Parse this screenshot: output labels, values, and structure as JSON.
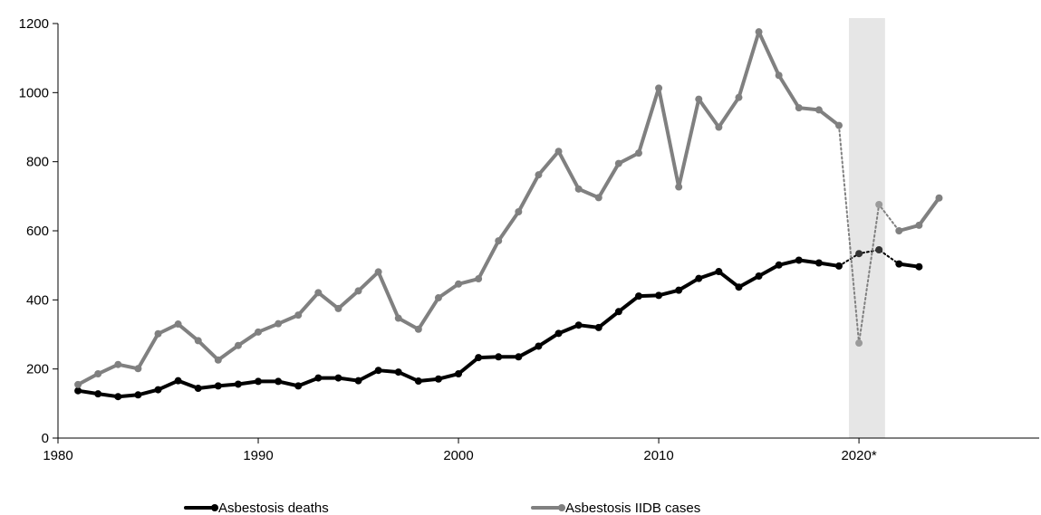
{
  "chart_data": {
    "type": "line",
    "title": "",
    "xlabel": "",
    "ylabel": "",
    "xlim": [
      1980,
      2029
    ],
    "ylim": [
      0,
      1200
    ],
    "x_ticks": [
      {
        "value": 1980,
        "label": "1980"
      },
      {
        "value": 1990,
        "label": "1990"
      },
      {
        "value": 2000,
        "label": "2000"
      },
      {
        "value": 2010,
        "label": "2010"
      },
      {
        "value": 2020,
        "label": "2020*"
      }
    ],
    "y_ticks": [
      {
        "value": 0,
        "label": "0"
      },
      {
        "value": 200,
        "label": "200"
      },
      {
        "value": 400,
        "label": "400"
      },
      {
        "value": 600,
        "label": "600"
      },
      {
        "value": 800,
        "label": "800"
      },
      {
        "value": 1000,
        "label": "1000"
      },
      {
        "value": 1200,
        "label": "1200"
      }
    ],
    "grid": false,
    "legend_position": "bottom",
    "shaded_region": {
      "x_start": 2019.5,
      "x_end": 2021.3,
      "color": "#e6e6e6"
    },
    "series": [
      {
        "name": "Asbestosis deaths",
        "color": "#000000",
        "points": [
          [
            1981,
            137
          ],
          [
            1982,
            128
          ],
          [
            1983,
            120
          ],
          [
            1984,
            125
          ],
          [
            1985,
            140
          ],
          [
            1986,
            166
          ],
          [
            1987,
            144
          ],
          [
            1988,
            151
          ],
          [
            1989,
            156
          ],
          [
            1990,
            164
          ],
          [
            1991,
            164
          ],
          [
            1992,
            151
          ],
          [
            1993,
            174
          ],
          [
            1994,
            174
          ],
          [
            1995,
            166
          ],
          [
            1996,
            196
          ],
          [
            1997,
            191
          ],
          [
            1998,
            165
          ],
          [
            1999,
            171
          ],
          [
            2000,
            186
          ],
          [
            2001,
            233
          ],
          [
            2002,
            235
          ],
          [
            2003,
            235
          ],
          [
            2004,
            266
          ],
          [
            2005,
            303
          ],
          [
            2006,
            327
          ],
          [
            2007,
            320
          ],
          [
            2008,
            366
          ],
          [
            2009,
            411
          ],
          [
            2010,
            413
          ],
          [
            2011,
            428
          ],
          [
            2012,
            462
          ],
          [
            2013,
            482
          ],
          [
            2014,
            437
          ],
          [
            2015,
            469
          ],
          [
            2016,
            501
          ],
          [
            2017,
            515
          ],
          [
            2018,
            507
          ],
          [
            2019,
            498
          ],
          [
            2020,
            534
          ],
          [
            2021,
            545
          ],
          [
            2022,
            504
          ],
          [
            2023,
            496
          ]
        ],
        "dotted_points": [
          [
            2019,
            498
          ],
          [
            2020,
            534
          ],
          [
            2021,
            545
          ],
          [
            2022,
            504
          ]
        ]
      },
      {
        "name": "Asbestosis IIDB cases",
        "color": "#808080",
        "points": [
          [
            1981,
            155
          ],
          [
            1982,
            186
          ],
          [
            1983,
            213
          ],
          [
            1984,
            201
          ],
          [
            1985,
            302
          ],
          [
            1986,
            330
          ],
          [
            1987,
            282
          ],
          [
            1988,
            226
          ],
          [
            1989,
            268
          ],
          [
            1990,
            307
          ],
          [
            1991,
            331
          ],
          [
            1992,
            356
          ],
          [
            1993,
            421
          ],
          [
            1994,
            375
          ],
          [
            1995,
            426
          ],
          [
            1996,
            481
          ],
          [
            1997,
            347
          ],
          [
            1998,
            315
          ],
          [
            1999,
            406
          ],
          [
            2000,
            446
          ],
          [
            2001,
            461
          ],
          [
            2002,
            571
          ],
          [
            2003,
            655
          ],
          [
            2004,
            762
          ],
          [
            2005,
            830
          ],
          [
            2006,
            721
          ],
          [
            2007,
            696
          ],
          [
            2008,
            795
          ],
          [
            2009,
            825
          ],
          [
            2010,
            1013
          ],
          [
            2011,
            727
          ],
          [
            2012,
            981
          ],
          [
            2013,
            900
          ],
          [
            2014,
            986
          ],
          [
            2015,
            1176
          ],
          [
            2016,
            1050
          ],
          [
            2017,
            956
          ],
          [
            2018,
            950
          ],
          [
            2019,
            905
          ],
          [
            2020,
            275
          ],
          [
            2021,
            676
          ],
          [
            2022,
            600
          ],
          [
            2023,
            616
          ],
          [
            2024,
            695
          ]
        ],
        "dotted_points": [
          [
            2019,
            905
          ],
          [
            2020,
            275
          ],
          [
            2021,
            676
          ],
          [
            2022,
            600
          ]
        ]
      }
    ]
  }
}
